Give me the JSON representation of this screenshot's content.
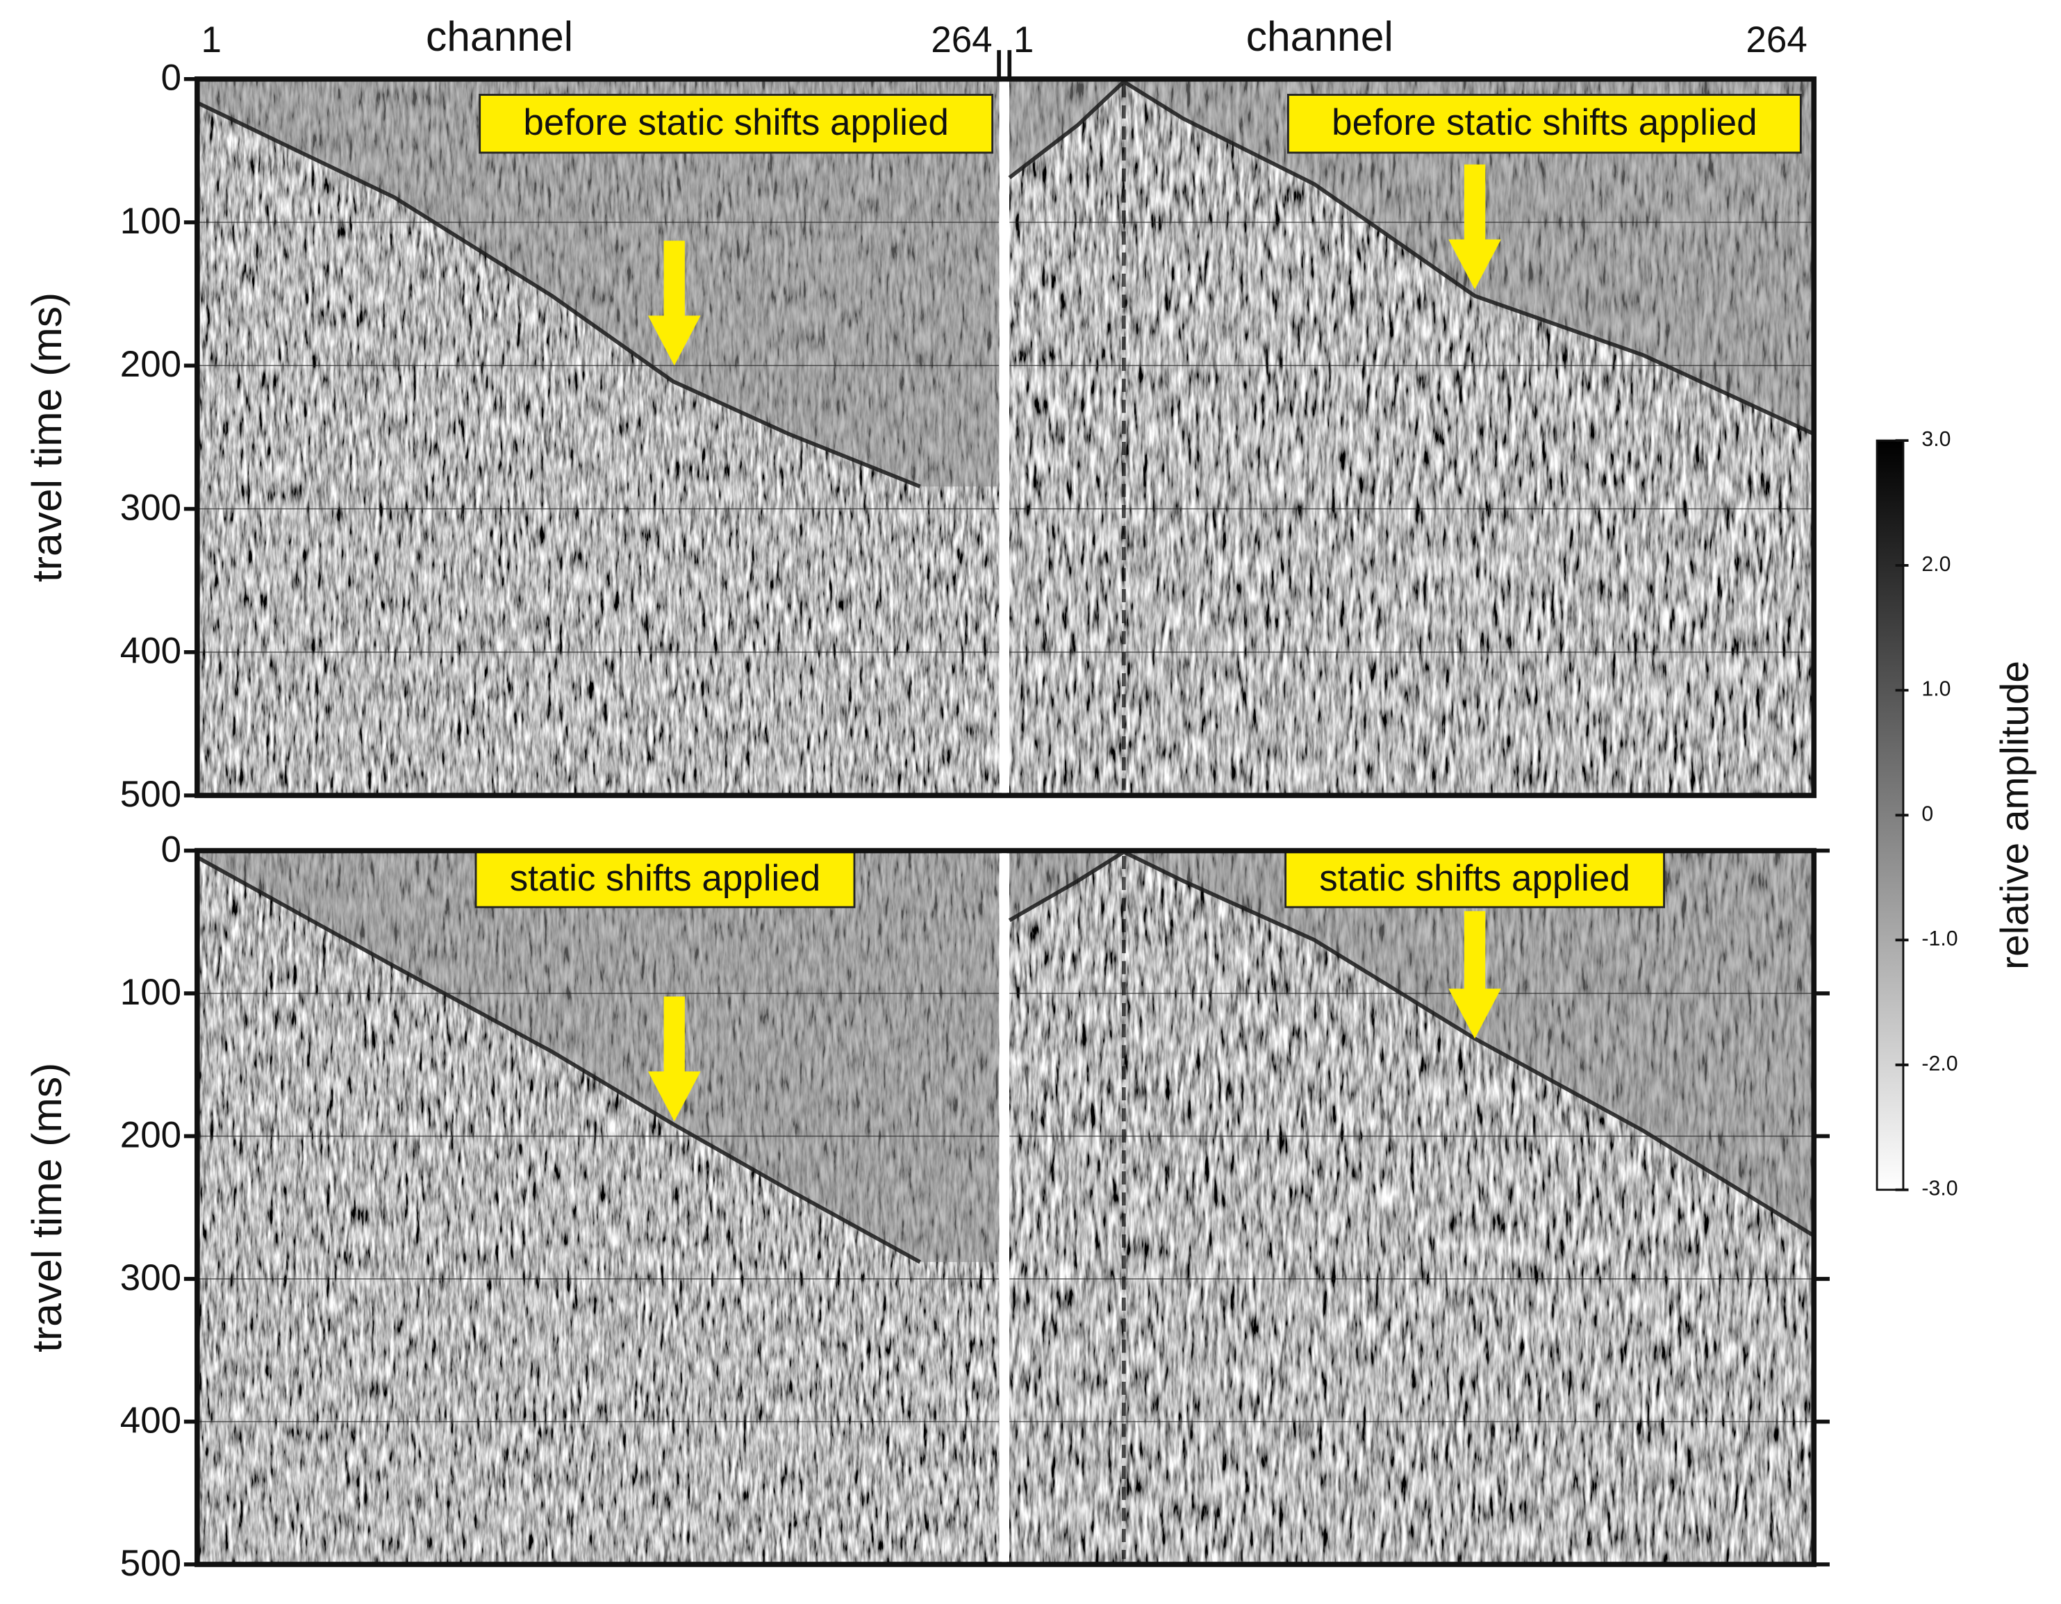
{
  "chart_data": [
    {
      "type": "seismic",
      "ylabel": "travel time (ms)",
      "ylim": [
        0,
        500
      ],
      "yticks": [
        0,
        100,
        200,
        300,
        400,
        500
      ],
      "grid": true,
      "right_ticks": false,
      "panels": [
        {
          "xlabel": "channel",
          "xlim": [
            1,
            264
          ],
          "xticks": [
            1,
            264
          ],
          "annotation": "before static shifts applied"
        },
        {
          "xlabel": "channel",
          "xlim": [
            1,
            264
          ],
          "xticks": [
            1,
            264
          ],
          "annotation": "before static shifts applied"
        }
      ]
    },
    {
      "type": "seismic",
      "ylabel": "travel time (ms)",
      "ylim": [
        0,
        500
      ],
      "yticks": [
        0,
        100,
        200,
        300,
        400,
        500
      ],
      "grid": true,
      "right_ticks": true,
      "panels": [
        {
          "annotation": "static shifts applied"
        },
        {
          "annotation": "static shifts applied"
        }
      ]
    },
    {
      "type": "colorbar",
      "label": "relative amplitude",
      "ylim": [
        -3,
        3
      ],
      "yticks": [
        {
          "value": 3,
          "label": "3.0"
        },
        {
          "value": 2,
          "label": "2.0"
        },
        {
          "value": 1,
          "label": "1.0"
        },
        0,
        {
          "value": -1,
          "label": "-1.0"
        },
        {
          "value": -2,
          "label": "-2.0"
        },
        {
          "value": -3,
          "label": "-3.0"
        }
      ]
    }
  ]
}
